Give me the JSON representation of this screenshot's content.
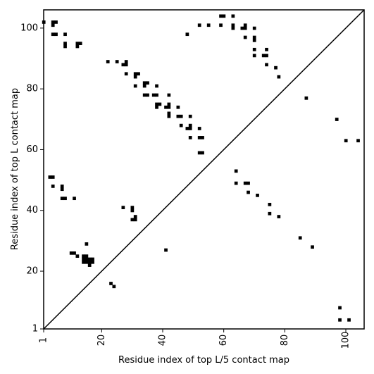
{
  "chart_data": {
    "type": "scatter",
    "marker": "square",
    "xlabel": "Residue index of top L/5 contact map",
    "ylabel": "Residue index of top L contact map",
    "xlim": [
      1,
      106
    ],
    "ylim": [
      1,
      106
    ],
    "x_ticks": [
      {
        "value": 1,
        "label": "1"
      },
      {
        "value": 20,
        "label": "20"
      },
      {
        "value": 40,
        "label": "40"
      },
      {
        "value": 60,
        "label": "60"
      },
      {
        "value": 80,
        "label": "80"
      },
      {
        "value": 100,
        "label": "100"
      }
    ],
    "y_ticks": [
      {
        "value": 1,
        "label": "1"
      },
      {
        "value": 20,
        "label": "20"
      },
      {
        "value": 40,
        "label": "40"
      },
      {
        "value": 60,
        "label": "60"
      },
      {
        "value": 80,
        "label": "80"
      },
      {
        "value": 100,
        "label": "100"
      }
    ],
    "diagonal": true,
    "colors": {
      "marker": "#000000",
      "axis": "#000000",
      "background": "#ffffff"
    },
    "points": [
      [
        1,
        102
      ],
      [
        4,
        102
      ],
      [
        5,
        102
      ],
      [
        4,
        101
      ],
      [
        4,
        98
      ],
      [
        5,
        98
      ],
      [
        8,
        98
      ],
      [
        8,
        95
      ],
      [
        8,
        94
      ],
      [
        12,
        95
      ],
      [
        13,
        95
      ],
      [
        12,
        94
      ],
      [
        3,
        51
      ],
      [
        4,
        51
      ],
      [
        4,
        48
      ],
      [
        7,
        48
      ],
      [
        7,
        47
      ],
      [
        7,
        44
      ],
      [
        8,
        44
      ],
      [
        11,
        44
      ],
      [
        10,
        26
      ],
      [
        11,
        26
      ],
      [
        12,
        25
      ],
      [
        14,
        25
      ],
      [
        15,
        25
      ],
      [
        14,
        24
      ],
      [
        15,
        24
      ],
      [
        14,
        23
      ],
      [
        15,
        23
      ],
      [
        16,
        24
      ],
      [
        17,
        24
      ],
      [
        16,
        23
      ],
      [
        17,
        23
      ],
      [
        16,
        22
      ],
      [
        15,
        29
      ],
      [
        22,
        89
      ],
      [
        25,
        89
      ],
      [
        27,
        88
      ],
      [
        28,
        88
      ],
      [
        28,
        89
      ],
      [
        28,
        85
      ],
      [
        31,
        85
      ],
      [
        32,
        85
      ],
      [
        31,
        84
      ],
      [
        31,
        81
      ],
      [
        34,
        82
      ],
      [
        35,
        82
      ],
      [
        34,
        81
      ],
      [
        34,
        78
      ],
      [
        35,
        78
      ],
      [
        37,
        78
      ],
      [
        38,
        78
      ],
      [
        38,
        81
      ],
      [
        38,
        75
      ],
      [
        39,
        75
      ],
      [
        38,
        74
      ],
      [
        41,
        74
      ],
      [
        42,
        74
      ],
      [
        42,
        75
      ],
      [
        42,
        78
      ],
      [
        42,
        72
      ],
      [
        42,
        71
      ],
      [
        45,
        74
      ],
      [
        45,
        71
      ],
      [
        46,
        71
      ],
      [
        46,
        68
      ],
      [
        48,
        67
      ],
      [
        49,
        67
      ],
      [
        49,
        68
      ],
      [
        49,
        71
      ],
      [
        49,
        64
      ],
      [
        52,
        67
      ],
      [
        52,
        64
      ],
      [
        53,
        64
      ],
      [
        52,
        59
      ],
      [
        53,
        59
      ],
      [
        27,
        41
      ],
      [
        30,
        41
      ],
      [
        30,
        40
      ],
      [
        30,
        37
      ],
      [
        31,
        37
      ],
      [
        31,
        38
      ],
      [
        41,
        27
      ],
      [
        23,
        16
      ],
      [
        24,
        15
      ],
      [
        48,
        98
      ],
      [
        52,
        101
      ],
      [
        55,
        101
      ],
      [
        59,
        101
      ],
      [
        59,
        104
      ],
      [
        60,
        104
      ],
      [
        63,
        104
      ],
      [
        63,
        101
      ],
      [
        63,
        100
      ],
      [
        66,
        100
      ],
      [
        67,
        100
      ],
      [
        67,
        101
      ],
      [
        67,
        97
      ],
      [
        70,
        100
      ],
      [
        70,
        97
      ],
      [
        70,
        96
      ],
      [
        70,
        93
      ],
      [
        70,
        91
      ],
      [
        73,
        91
      ],
      [
        74,
        91
      ],
      [
        74,
        93
      ],
      [
        74,
        88
      ],
      [
        77,
        87
      ],
      [
        78,
        84
      ],
      [
        64,
        53
      ],
      [
        64,
        49
      ],
      [
        67,
        49
      ],
      [
        68,
        49
      ],
      [
        68,
        46
      ],
      [
        71,
        45
      ],
      [
        75,
        42
      ],
      [
        75,
        39
      ],
      [
        78,
        38
      ],
      [
        85,
        31
      ],
      [
        87,
        77
      ],
      [
        89,
        28
      ],
      [
        97,
        70
      ],
      [
        100,
        63
      ],
      [
        104,
        63
      ],
      [
        98,
        8
      ],
      [
        98,
        4
      ],
      [
        101,
        4
      ]
    ]
  }
}
